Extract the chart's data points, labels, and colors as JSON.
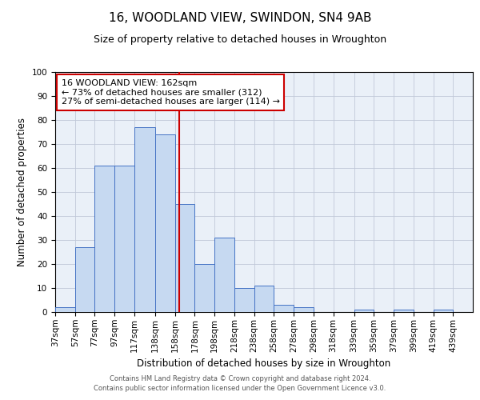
{
  "title1": "16, WOODLAND VIEW, SWINDON, SN4 9AB",
  "title2": "Size of property relative to detached houses in Wroughton",
  "xlabel": "Distribution of detached houses by size in Wroughton",
  "ylabel": "Number of detached properties",
  "bin_labels": [
    "37sqm",
    "57sqm",
    "77sqm",
    "97sqm",
    "117sqm",
    "138sqm",
    "158sqm",
    "178sqm",
    "198sqm",
    "218sqm",
    "238sqm",
    "258sqm",
    "278sqm",
    "298sqm",
    "318sqm",
    "339sqm",
    "359sqm",
    "379sqm",
    "399sqm",
    "419sqm",
    "439sqm"
  ],
  "bin_edges": [
    37,
    57,
    77,
    97,
    117,
    138,
    158,
    178,
    198,
    218,
    238,
    258,
    278,
    298,
    318,
    339,
    359,
    379,
    399,
    419,
    439
  ],
  "bar_heights": [
    2,
    27,
    61,
    61,
    77,
    74,
    45,
    20,
    31,
    10,
    11,
    3,
    2,
    0,
    0,
    1,
    0,
    1,
    0,
    1
  ],
  "bar_color": "#c6d9f1",
  "bar_edge_color": "#4472c4",
  "grid_color": "#c0c8d8",
  "bg_color": "#eaf0f8",
  "vline_x": 162,
  "vline_color": "#cc0000",
  "annotation_line1": "16 WOODLAND VIEW: 162sqm",
  "annotation_line2": "← 73% of detached houses are smaller (312)",
  "annotation_line3": "27% of semi-detached houses are larger (114) →",
  "annotation_box_color": "#cc0000",
  "footer1": "Contains HM Land Registry data © Crown copyright and database right 2024.",
  "footer2": "Contains public sector information licensed under the Open Government Licence v3.0.",
  "ylim": [
    0,
    100
  ],
  "title_fontsize": 11,
  "subtitle_fontsize": 9,
  "axis_label_fontsize": 8.5,
  "tick_fontsize": 7.5,
  "annotation_fontsize": 8,
  "footer_fontsize": 6
}
